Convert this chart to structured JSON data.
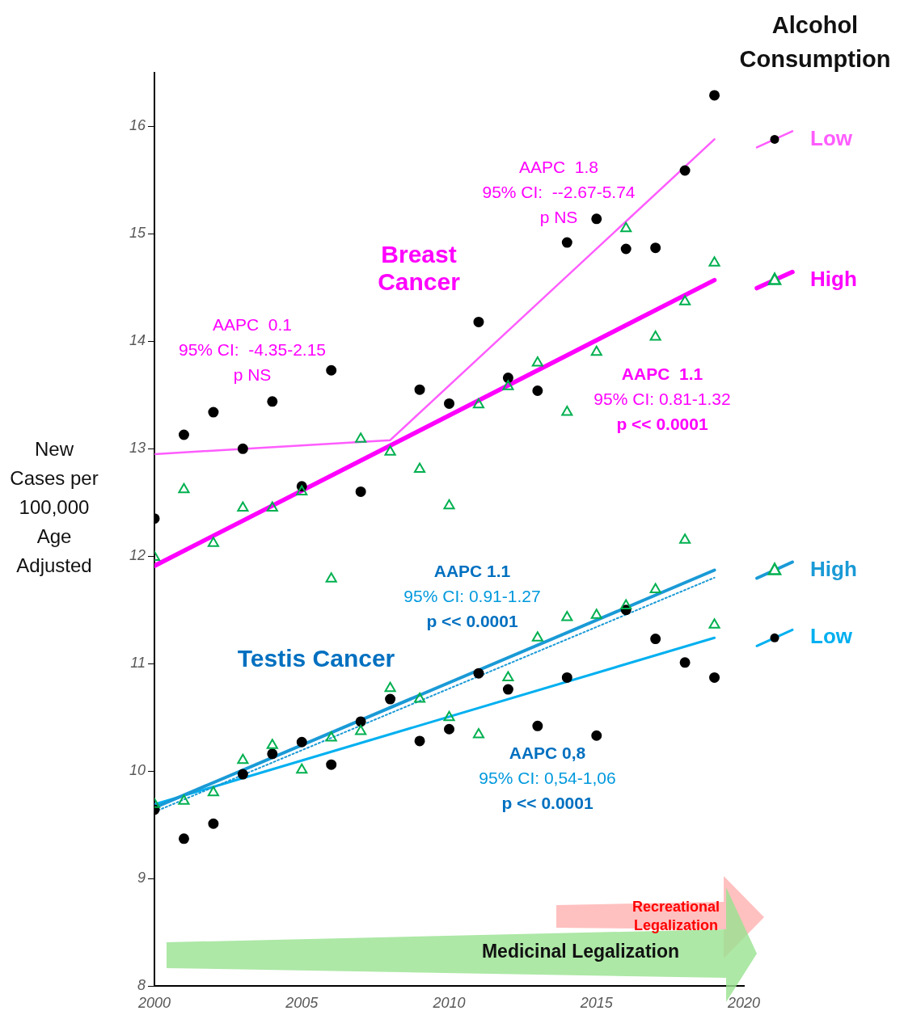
{
  "chart_data": {
    "type": "scatter",
    "ylabel": "New Cases per 100,000 Age Adjusted",
    "legend_title": "Alcohol Consumption",
    "legend": "right",
    "x": [
      2000,
      2001,
      2002,
      2003,
      2004,
      2005,
      2006,
      2007,
      2008,
      2009,
      2010,
      2011,
      2012,
      2013,
      2014,
      2015,
      2016,
      2017,
      2018,
      2019
    ],
    "xlim": [
      2000,
      2020
    ],
    "xticks": [
      2000,
      2005,
      2010,
      2015,
      2020
    ],
    "ylim": [
      8,
      16.5
    ],
    "yticks": [
      8,
      9,
      10,
      11,
      12,
      13,
      14,
      15,
      16
    ],
    "series": [
      {
        "name": "Low",
        "type": "line",
        "color": "#ff5cff",
        "x": [
          2000,
          2008,
          2019
        ],
        "values": [
          12.95,
          13.08,
          15.88
        ]
      },
      {
        "marker": "circle",
        "color": "#000000",
        "values": [
          12.35,
          13.13,
          13.34,
          13.0,
          13.44,
          12.65,
          13.73,
          12.6,
          null,
          13.55,
          13.42,
          14.18,
          13.66,
          13.54,
          14.92,
          15.14,
          14.86,
          14.87,
          15.59,
          16.29
        ]
      },
      {
        "name": "High",
        "type": "line",
        "color": "#ff00ff",
        "x": [
          2000,
          2019
        ],
        "values": [
          11.91,
          14.57
        ]
      },
      {
        "marker": "triangle",
        "color": "#00b050",
        "values": [
          11.99,
          12.62,
          12.12,
          12.45,
          12.45,
          12.6,
          11.79,
          13.09,
          12.97,
          12.81,
          12.47,
          13.41,
          13.58,
          13.8,
          13.34,
          13.9,
          15.05,
          14.04,
          14.37,
          14.73
        ]
      },
      {
        "name": "High",
        "type": "line",
        "color": "#1a9ad6",
        "x": [
          2000,
          2019
        ],
        "values": [
          9.66,
          11.87
        ]
      },
      {
        "type": "line",
        "line_style": "dotted",
        "color": "#1a9ad6",
        "x": [
          2000,
          2019
        ],
        "values": [
          9.62,
          11.8
        ]
      },
      {
        "marker": "triangle",
        "color": "#00b050",
        "values": [
          9.69,
          9.72,
          9.8,
          10.1,
          10.24,
          10.01,
          10.31,
          10.37,
          10.77,
          10.67,
          10.5,
          10.34,
          10.87,
          11.24,
          11.43,
          11.45,
          11.54,
          11.69,
          12.15,
          11.36
        ]
      },
      {
        "name": "Low",
        "type": "line",
        "color": "#00b0f0",
        "x": [
          2000,
          2019
        ],
        "values": [
          9.69,
          11.24
        ]
      },
      {
        "marker": "circle",
        "color": "#000000",
        "values": [
          9.64,
          9.37,
          9.51,
          9.97,
          10.16,
          10.27,
          10.06,
          10.46,
          10.67,
          10.28,
          10.39,
          10.91,
          10.76,
          10.42,
          10.87,
          10.33,
          11.5,
          11.23,
          11.01,
          10.87
        ]
      }
    ],
    "annotations": [
      "Breast\nCancer",
      "AAPC  0.1\n95% CI:  -4.35-2.15\np NS",
      "AAPC  1.8\n95% CI:  --2.67-5.74\np NS",
      "AAPC  1.1\n95% CI: 0.81-1.32\np << 0.0001",
      "Testis Cancer",
      "AAPC 1.1\n95% CI: 0.91-1.27\np << 0.0001",
      "AAPC 0,8\n95% CI: 0,54-1,06\np << 0.0001",
      "Recreational Legalization",
      "Medicinal Legalization"
    ]
  }
}
